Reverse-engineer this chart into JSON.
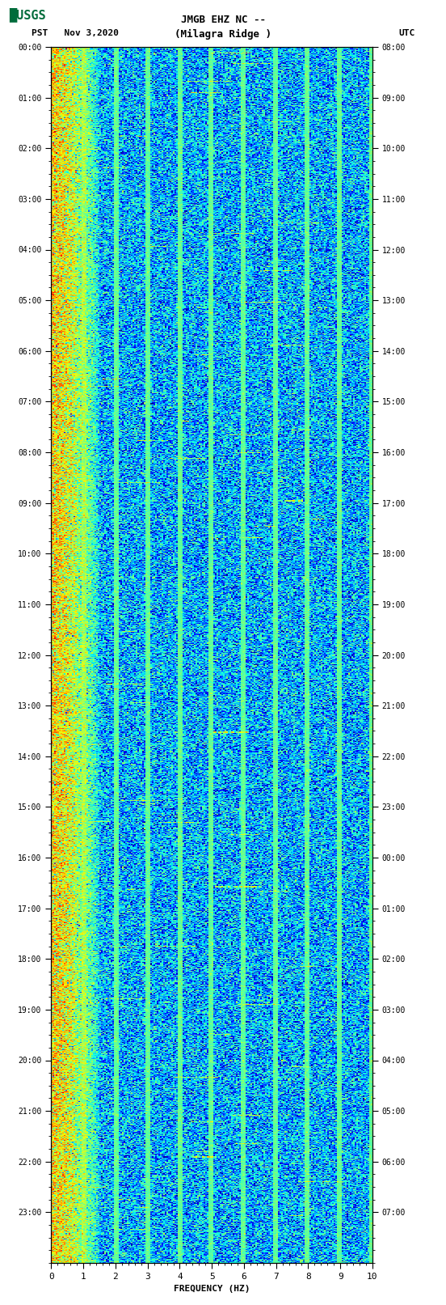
{
  "title_line1": "JMGB EHZ NC --",
  "title_line2": "(Milagra Ridge )",
  "date_label": "PST   Nov 3,2020",
  "utc_label": "UTC",
  "xlabel": "FREQUENCY (HZ)",
  "x_ticks": [
    0,
    1,
    2,
    3,
    4,
    5,
    6,
    7,
    8,
    9,
    10
  ],
  "xlim": [
    0,
    10
  ],
  "pst_times": [
    "00:00",
    "01:00",
    "02:00",
    "03:00",
    "04:00",
    "05:00",
    "06:00",
    "07:00",
    "08:00",
    "09:00",
    "10:00",
    "11:00",
    "12:00",
    "13:00",
    "14:00",
    "15:00",
    "16:00",
    "17:00",
    "18:00",
    "19:00",
    "20:00",
    "21:00",
    "22:00",
    "23:00"
  ],
  "utc_times": [
    "08:00",
    "09:00",
    "10:00",
    "11:00",
    "12:00",
    "13:00",
    "14:00",
    "15:00",
    "16:00",
    "17:00",
    "18:00",
    "19:00",
    "20:00",
    "21:00",
    "22:00",
    "23:00",
    "00:00",
    "01:00",
    "02:00",
    "03:00",
    "04:00",
    "05:00",
    "06:00",
    "07:00"
  ],
  "fig_width": 5.52,
  "fig_height": 16.13,
  "dpi": 100,
  "bg_color": "#ffffff",
  "plot_bg_color": "#000080",
  "usgs_green": "#006c3b",
  "colormap": "jet",
  "noise_seed": 42,
  "freq_resolution": 200,
  "time_resolution": 1440,
  "low_freq_intensity": 2.5,
  "minor_tick_count": 4
}
